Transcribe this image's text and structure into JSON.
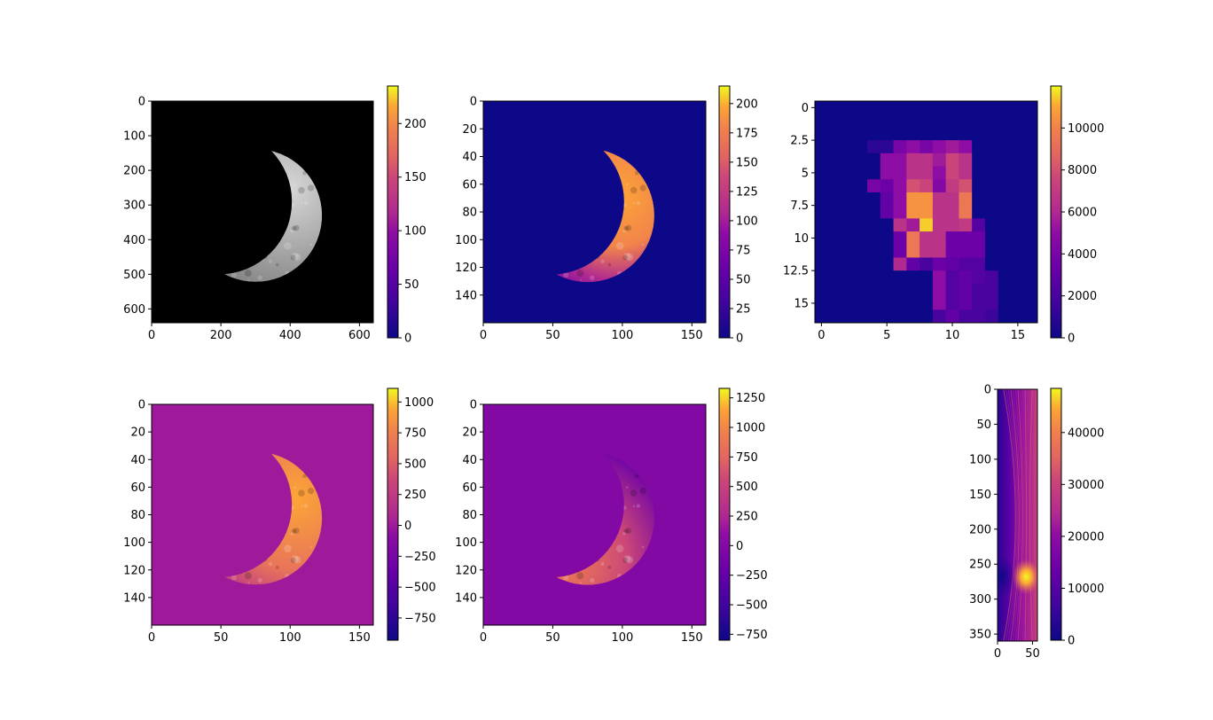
{
  "colors": {
    "plasma": [
      "#0d0887",
      "#6a00a8",
      "#b12a90",
      "#e16462",
      "#fca636",
      "#f0f921"
    ],
    "moon_bg": "#000000"
  },
  "chart_data": [
    {
      "id": "moon-original",
      "type": "heatmap",
      "colormap": "gray-image",
      "xlim": [
        0,
        640
      ],
      "ylim": [
        640,
        0
      ],
      "xticks": [
        0,
        200,
        400,
        600
      ],
      "yticks": [
        0,
        100,
        200,
        300,
        400,
        500,
        600
      ],
      "colorbar": {
        "min": 0,
        "max": 235,
        "ticks": [
          0,
          50,
          100,
          150,
          200
        ]
      },
      "crescent": {
        "cx": 300,
        "cy": 330,
        "r": 192,
        "ox": 195,
        "oy": 290,
        "ir": 210
      }
    },
    {
      "id": "moon-downsampled",
      "type": "heatmap",
      "colormap": "plasma",
      "xlim": [
        0,
        160
      ],
      "ylim": [
        160,
        0
      ],
      "xticks": [
        0,
        50,
        100,
        150
      ],
      "yticks": [
        0,
        20,
        40,
        60,
        80,
        100,
        120,
        140
      ],
      "colorbar": {
        "min": 0,
        "max": 215,
        "ticks": [
          0,
          25,
          50,
          75,
          100,
          125,
          150,
          175,
          200
        ]
      },
      "crescent": {
        "cx": 75,
        "cy": 82.5,
        "r": 48,
        "ox": 48.75,
        "oy": 72.5,
        "ir": 52.5
      }
    },
    {
      "id": "block-sums",
      "type": "heatmap",
      "colormap": "plasma",
      "xlim": [
        -0.5,
        16.5
      ],
      "ylim": [
        16.5,
        -0.5
      ],
      "xticks": [
        0,
        5,
        10,
        15
      ],
      "yticks": [
        0.0,
        2.5,
        5.0,
        7.5,
        10.0,
        12.5,
        15.0
      ],
      "colorbar": {
        "min": 0,
        "max": 12000,
        "ticks": [
          0,
          2000,
          4000,
          6000,
          8000,
          10000
        ]
      },
      "values": [
        [
          0,
          0,
          0,
          0,
          0,
          0,
          0,
          0,
          0,
          0,
          0,
          0,
          0,
          0,
          0,
          0,
          0
        ],
        [
          0,
          0,
          0,
          0,
          0,
          0,
          0,
          0,
          0,
          0,
          0,
          0,
          0,
          0,
          0,
          0,
          0
        ],
        [
          0,
          0,
          0,
          0,
          0,
          0,
          0,
          0,
          0,
          0,
          0,
          0,
          0,
          0,
          0,
          0,
          0
        ],
        [
          0,
          0,
          0,
          0,
          1000,
          1000,
          4000,
          5000,
          4000,
          5000,
          5500,
          5000,
          0,
          0,
          0,
          0,
          0
        ],
        [
          0,
          0,
          0,
          0,
          0,
          5000,
          5000,
          6500,
          6500,
          5500,
          7500,
          6500,
          0,
          0,
          0,
          0,
          0
        ],
        [
          0,
          0,
          0,
          0,
          0,
          5000,
          5000,
          6500,
          6500,
          5000,
          7500,
          6500,
          0,
          0,
          0,
          0,
          0
        ],
        [
          0,
          0,
          0,
          0,
          4000,
          3500,
          5000,
          8000,
          7500,
          4500,
          7000,
          8000,
          0,
          0,
          0,
          0,
          0
        ],
        [
          0,
          0,
          0,
          0,
          0,
          3000,
          5000,
          10500,
          10500,
          6500,
          6500,
          9500,
          0,
          0,
          0,
          0,
          0
        ],
        [
          0,
          0,
          0,
          0,
          0,
          3000,
          5000,
          10500,
          10500,
          6500,
          6500,
          9500,
          0,
          0,
          0,
          0,
          0
        ],
        [
          0,
          0,
          0,
          0,
          0,
          0,
          6500,
          5500,
          11500,
          6500,
          6500,
          7000,
          2500,
          0,
          0,
          0,
          0
        ],
        [
          0,
          0,
          0,
          0,
          0,
          0,
          3500,
          9500,
          6500,
          6500,
          3500,
          3500,
          3500,
          0,
          0,
          0,
          0
        ],
        [
          0,
          0,
          0,
          0,
          0,
          0,
          3500,
          9500,
          6500,
          6500,
          3500,
          3500,
          3500,
          0,
          0,
          0,
          0
        ],
        [
          0,
          0,
          0,
          0,
          0,
          0,
          6000,
          3000,
          2000,
          3500,
          3000,
          2500,
          2500,
          0,
          0,
          0,
          0
        ],
        [
          0,
          0,
          0,
          0,
          0,
          0,
          0,
          0,
          0,
          5000,
          2500,
          3000,
          2500,
          2000,
          0,
          0,
          0
        ],
        [
          0,
          0,
          0,
          0,
          0,
          0,
          0,
          0,
          0,
          5000,
          2500,
          3000,
          2000,
          2000,
          0,
          0,
          0
        ],
        [
          0,
          0,
          0,
          0,
          0,
          0,
          0,
          0,
          0,
          5000,
          2500,
          3000,
          2000,
          2000,
          0,
          0,
          0
        ],
        [
          0,
          0,
          0,
          0,
          0,
          0,
          0,
          0,
          0,
          2000,
          3000,
          2000,
          2000,
          1500,
          0,
          0,
          0
        ]
      ]
    },
    {
      "id": "gradient-x",
      "type": "heatmap",
      "colormap": "plasma",
      "xlim": [
        0,
        160
      ],
      "ylim": [
        160,
        0
      ],
      "xticks": [
        0,
        50,
        100,
        150
      ],
      "yticks": [
        0,
        20,
        40,
        60,
        80,
        100,
        120,
        140
      ],
      "colorbar": {
        "min": -930,
        "max": 1110,
        "ticks": [
          -750,
          -500,
          -250,
          0,
          250,
          500,
          750,
          1000
        ]
      },
      "crescent": {
        "cx": 75,
        "cy": 82.5,
        "r": 48,
        "ox": 48.75,
        "oy": 72.5,
        "ir": 52.5
      }
    },
    {
      "id": "gradient-y",
      "type": "heatmap",
      "colormap": "plasma",
      "xlim": [
        0,
        160
      ],
      "ylim": [
        160,
        0
      ],
      "xticks": [
        0,
        50,
        100,
        150
      ],
      "yticks": [
        0,
        20,
        40,
        60,
        80,
        100,
        120,
        140
      ],
      "colorbar": {
        "min": -800,
        "max": 1330,
        "ticks": [
          -750,
          -500,
          -250,
          0,
          250,
          500,
          750,
          1000,
          1250
        ]
      },
      "crescent": {
        "cx": 75,
        "cy": 82.5,
        "r": 48,
        "ox": 48.75,
        "oy": 72.5,
        "ir": 52.5
      }
    },
    {
      "id": "radon-transform",
      "type": "heatmap",
      "colormap": "plasma",
      "xlim": [
        0,
        57
      ],
      "ylim": [
        360,
        0
      ],
      "xticks": [
        0,
        50
      ],
      "yticks": [
        0,
        50,
        100,
        150,
        200,
        250,
        300,
        350
      ],
      "colorbar": {
        "min": 0,
        "max": 48500,
        "ticks": [
          0,
          10000,
          20000,
          30000,
          40000
        ]
      }
    }
  ]
}
